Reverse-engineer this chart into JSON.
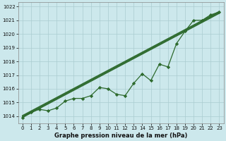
{
  "x_values": [
    0,
    1,
    2,
    3,
    4,
    5,
    6,
    7,
    8,
    9,
    10,
    11,
    12,
    13,
    14,
    15,
    16,
    17,
    18,
    19,
    20,
    21,
    22,
    23
  ],
  "y_main": [
    1013.9,
    1014.3,
    1014.5,
    1014.4,
    1014.6,
    1015.1,
    1015.3,
    1015.3,
    1015.5,
    1016.1,
    1016.0,
    1015.6,
    1015.5,
    1016.4,
    1017.1,
    1016.6,
    1017.8,
    1017.6,
    1019.3,
    1020.2,
    1021.0,
    1021.0,
    1021.4,
    1021.6
  ],
  "trend_lines": [
    [
      1013.9,
      1021.5
    ],
    [
      1013.95,
      1021.55
    ],
    [
      1014.0,
      1021.6
    ],
    [
      1014.05,
      1021.65
    ]
  ],
  "background_color": "#cce8ec",
  "grid_color": "#aaccd0",
  "line_color": "#2d6a2d",
  "marker_color": "#2d6a2d",
  "ylabel_values": [
    1014,
    1015,
    1016,
    1017,
    1018,
    1019,
    1020,
    1021,
    1022
  ],
  "xlabel": "Graphe pression niveau de la mer (hPa)",
  "ylim": [
    1013.5,
    1022.3
  ],
  "xlim": [
    -0.5,
    23.5
  ],
  "tick_fontsize": 5.0,
  "xlabel_fontsize": 6.0
}
